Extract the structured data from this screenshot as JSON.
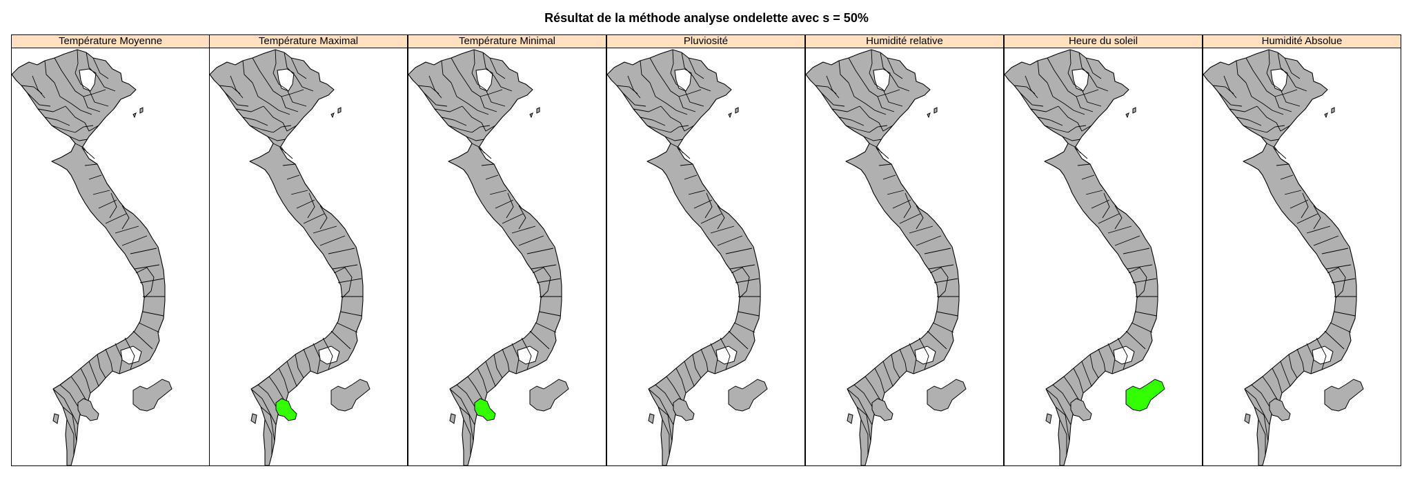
{
  "title": "Résultat de la méthode analyse ondelette avec s = 50%",
  "colors": {
    "strip_fill": "#ffe0c0",
    "province_fill": "#b0b0b0",
    "highlight_fill": "#33ff00",
    "outline": "#000000"
  },
  "panels": [
    {
      "label": "Température Moyenne",
      "highlight": []
    },
    {
      "label": "Température Maximal",
      "highlight": [
        "mekong-inland-province"
      ]
    },
    {
      "label": "Température Minimal",
      "highlight": [
        "mekong-inland-province"
      ]
    },
    {
      "label": "Pluviosité",
      "highlight": []
    },
    {
      "label": "Humidité relative",
      "highlight": []
    },
    {
      "label": "Heure du soleil",
      "highlight": [
        "southeast-coastal-province"
      ]
    },
    {
      "label": "Humidité Absolue",
      "highlight": []
    }
  ]
}
